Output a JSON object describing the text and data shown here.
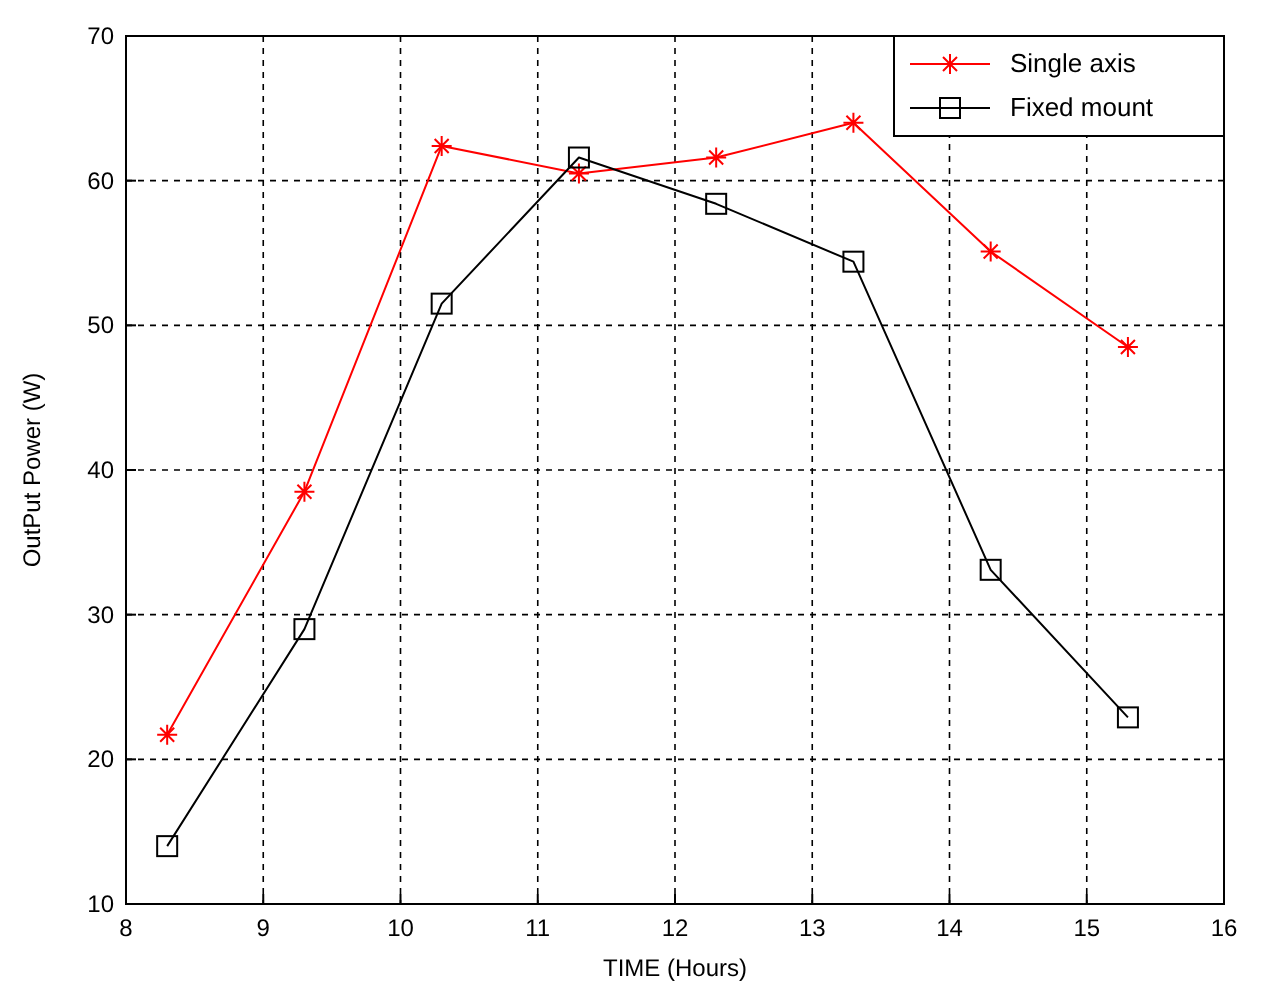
{
  "chart_data": {
    "type": "line",
    "xlabel": "TIME  (Hours)",
    "ylabel": "OutPut Power (W)",
    "x": [
      8.3,
      9.3,
      10.3,
      11.3,
      12.3,
      13.3,
      14.3,
      15.3
    ],
    "series": [
      {
        "name": "Single axis",
        "color": "#ff0000",
        "marker": "cross",
        "values": [
          21.7,
          38.5,
          62.4,
          60.5,
          61.6,
          64.0,
          55.1,
          48.5
        ]
      },
      {
        "name": "Fixed mount",
        "color": "#000000",
        "marker": "square",
        "values": [
          14.0,
          29.0,
          51.5,
          61.6,
          58.4,
          54.4,
          33.1,
          22.9
        ]
      }
    ],
    "xlim": [
      8,
      16
    ],
    "xticks": [
      8,
      9,
      10,
      11,
      12,
      13,
      14,
      15,
      16
    ],
    "ylim": [
      10,
      70
    ],
    "yticks": [
      10,
      20,
      30,
      40,
      50,
      60,
      70
    ],
    "grid": true,
    "legend": "top right",
    "line_style": "solid"
  }
}
